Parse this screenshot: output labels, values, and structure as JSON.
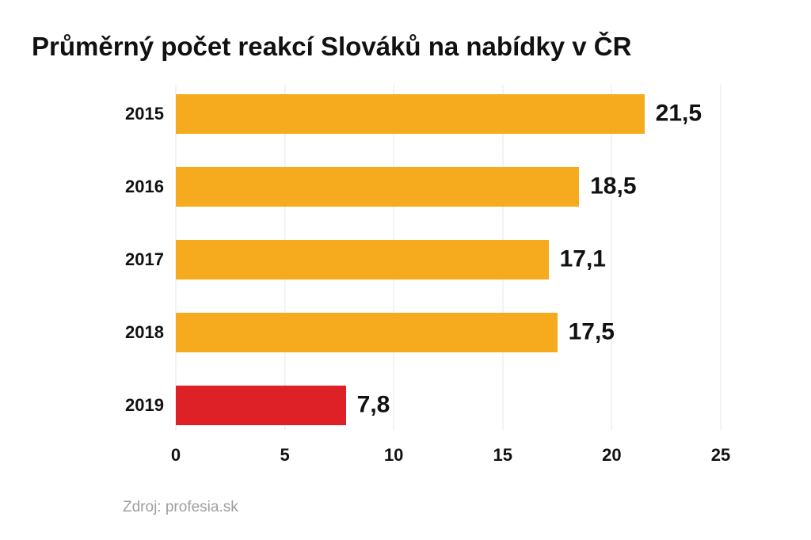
{
  "title": "Průměrný počet reakcí Slováků na nabídky v ČR",
  "source": "Zdroj: profesia.sk",
  "colors": {
    "background": "#ffffff",
    "bar_default": "#f6ab1e",
    "bar_highlight": "#de2127",
    "text": "#111111",
    "grid": "#e7e7e7",
    "source_text": "#9e9e9e"
  },
  "chart_data": {
    "type": "bar",
    "orientation": "horizontal",
    "title": "Průměrný počet reakcí Slováků na nabídky v ČR",
    "categories": [
      "2015",
      "2016",
      "2017",
      "2018",
      "2019"
    ],
    "values": [
      21.5,
      18.5,
      17.1,
      17.5,
      7.8
    ],
    "value_labels": [
      "21,5",
      "18,5",
      "17,1",
      "17,5",
      "7,8"
    ],
    "bar_colors": [
      "#f6ab1e",
      "#f6ab1e",
      "#f6ab1e",
      "#f6ab1e",
      "#de2127"
    ],
    "xlabel": "",
    "ylabel": "",
    "xlim": [
      0,
      25
    ],
    "x_ticks": [
      0,
      5,
      10,
      15,
      20,
      25
    ],
    "x_tick_labels": [
      "0",
      "5",
      "10",
      "15",
      "20",
      "25"
    ],
    "grid": true,
    "legend": false,
    "source": "Zdroj: profesia.sk"
  }
}
